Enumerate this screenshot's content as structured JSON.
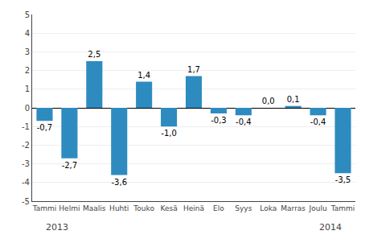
{
  "chart_data": {
    "type": "bar",
    "categories": [
      "Tammi",
      "Helmi",
      "Maalis",
      "Huhti",
      "Touko",
      "Kesä",
      "Heinä",
      "Elo",
      "Syys",
      "Loka",
      "Marras",
      "Joulu",
      "Tammi"
    ],
    "values": [
      -0.7,
      -2.7,
      2.5,
      -3.6,
      1.4,
      -1.0,
      1.7,
      -0.3,
      -0.4,
      0.0,
      0.1,
      -0.4,
      -3.5
    ],
    "value_labels": [
      "-0,7",
      "-2,7",
      "2,5",
      "-3,6",
      "1,4",
      "-1,0",
      "1,7",
      "-0,3",
      "-0,4",
      "0,0",
      "0,1",
      "-0,4",
      "-3,5"
    ],
    "data_labels": true,
    "color": "#2E8BC0",
    "ylim": [
      -5,
      5
    ],
    "yticks": [
      -5,
      -4,
      -3,
      -2,
      -1,
      0,
      1,
      2,
      3,
      4,
      5
    ],
    "grid": true,
    "annotations": [
      {
        "text": "2013",
        "x": 0
      },
      {
        "text": "2014",
        "x": 12
      }
    ]
  }
}
